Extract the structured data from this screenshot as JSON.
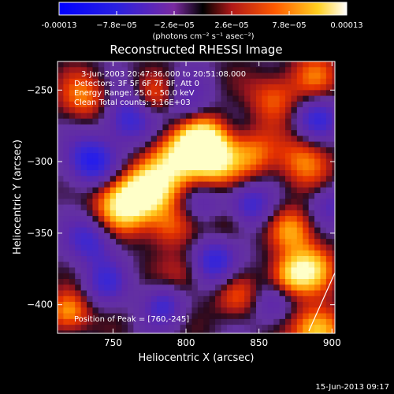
{
  "chart_data": {
    "type": "heatmap",
    "title": "Reconstructed RHESSI Image",
    "xlabel": "Heliocentric X (arcsec)",
    "ylabel": "Heliocentric Y (arcsec)",
    "xlim": [
      712,
      902
    ],
    "ylim": [
      -420,
      -230
    ],
    "xticks": [
      750,
      800,
      850,
      900
    ],
    "yticks": [
      -250,
      -300,
      -350,
      -400
    ],
    "colorbar": {
      "range": [
        -0.00013,
        0.00013
      ],
      "ticks": [
        "-0.00013",
        "−7.8e−05",
        "−2.6e−05",
        "2.6e−05",
        "7.8e−05",
        "0.00013"
      ],
      "unit": "(photons cm⁻² s⁻¹ asec⁻²)"
    },
    "info_lines": [
      "3-Jun-2003 20:47:36.000 to 20:51:08.000",
      "Detectors: 3F 5F 6F 7F 8F, Att 0",
      "Energy Range: 25.0 - 50.0 keV",
      "Clean      Total counts: 3.16E+03"
    ],
    "peak_label": "Position of Peak = [760,-245]",
    "grid": false,
    "colormap": [
      "#000000",
      "#1010ff",
      "#4020c0",
      "#6a2aa8",
      "#9a2f86",
      "#d02020",
      "#ff5a00",
      "#ffb000",
      "#ffff80",
      "#ffffff"
    ]
  },
  "footer": {
    "timestamp": "15-Jun-2013 09:17"
  }
}
